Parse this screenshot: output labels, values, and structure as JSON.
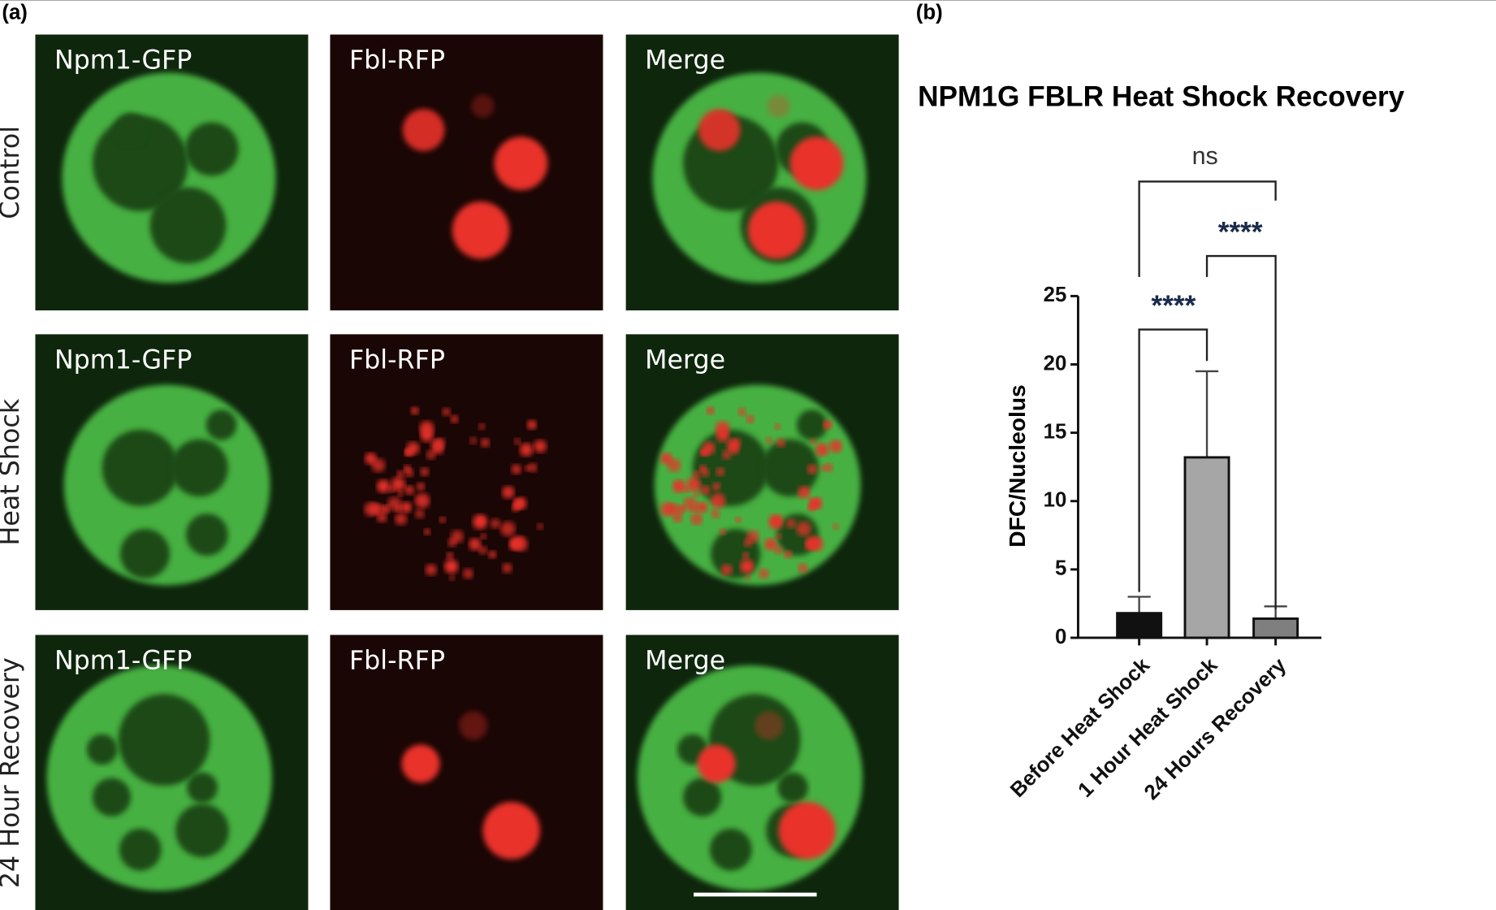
{
  "panel_a": {
    "label": "(a)",
    "rows": [
      "Control",
      "Heat Shock",
      "24 Hour Recovery"
    ],
    "columns": [
      "Npm1-GFP",
      "Fbl-RFP",
      "Merge"
    ]
  },
  "panel_b": {
    "label": "(b)"
  },
  "chart_data": {
    "type": "bar",
    "title": "NPM1G FBLR Heat  Shock  Recovery",
    "y_label": "DFC/Nucleolus",
    "categories": [
      "Before Heat Shock",
      "1 Hour Heat Shock",
      "24 Hours Recovery"
    ],
    "values": [
      1.8,
      13.2,
      1.4
    ],
    "errors": [
      1.2,
      6.3,
      0.9
    ],
    "colors": [
      "#111111",
      "#a6a6a6",
      "#7f7f7f"
    ],
    "ylim": [
      0,
      25
    ],
    "yticks": [
      0,
      5,
      10,
      15,
      20,
      25
    ],
    "annotations": [
      "ns",
      "****",
      "****"
    ]
  }
}
